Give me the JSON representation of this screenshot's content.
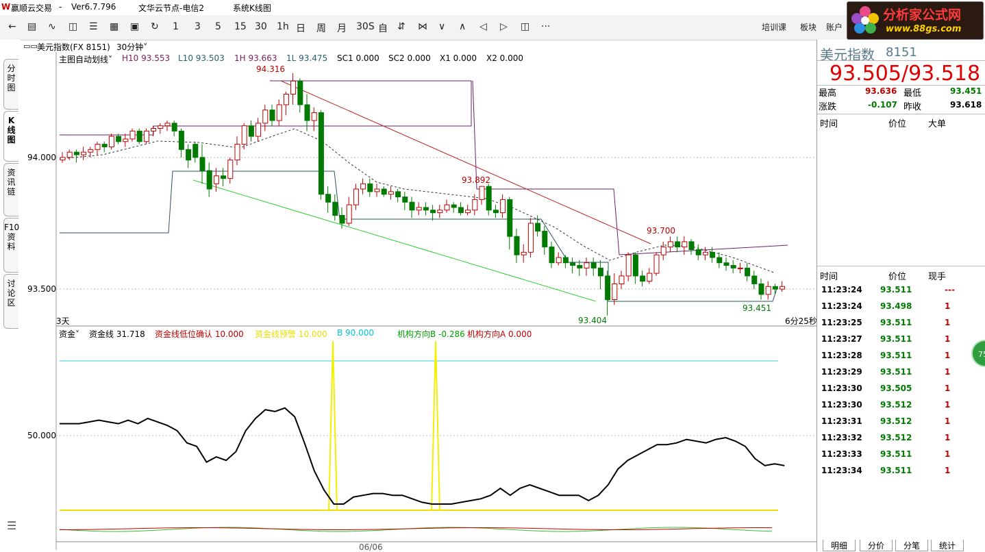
{
  "window": {
    "title": "赢顺云交易",
    "sep": "-",
    "version": "Ver6.7.796",
    "node": "文华云节点-电信2",
    "system": "系统K线图"
  },
  "logo": {
    "text": "分析家公式网",
    "url": "www.88gs.com"
  },
  "toolbar": {
    "periods": [
      "1",
      "3",
      "5",
      "15",
      "30",
      "1h",
      "日",
      "周",
      "月",
      "30S",
      "自"
    ],
    "right_items": [
      "培训课",
      "板块",
      "账户"
    ],
    "more": "···"
  },
  "sidebar": {
    "tabs": [
      "分时图",
      "K线图",
      "资讯链",
      "F10资料",
      "讨论区"
    ]
  },
  "chart": {
    "instrument": "美元指数(FX 8151)",
    "period": "30分钟",
    "indicator_name": "主图自动划线",
    "indicators": [
      {
        "text": "H10 93.553",
        "color": "#7a1f5c"
      },
      {
        "text": "L10 93.503",
        "color": "#2a6070"
      },
      {
        "text": "1H 93.663",
        "color": "#7a1f5c"
      },
      {
        "text": "1L 93.475",
        "color": "#2a6070"
      },
      {
        "text": "SC1 0.000",
        "color": "#000"
      },
      {
        "text": "SC2 0.000",
        "color": "#000"
      },
      {
        "text": "X1 0.000",
        "color": "#000"
      },
      {
        "text": "X2 0.000",
        "color": "#000"
      }
    ],
    "yticks": [
      "94.000",
      "93.500"
    ],
    "annotations": {
      "high": "94.316",
      "mid": "93.892",
      "right": "93.700",
      "low": "93.404",
      "last_low": "93.451"
    },
    "days_label": "3天",
    "countdown": "6分25秒",
    "sub_indicator": "资金",
    "sub_items": [
      {
        "text": "资金线 31.718",
        "color": "#000"
      },
      {
        "text": "资金线低位确认 10.000",
        "color": "#c00000"
      },
      {
        "text": "资金线预警 10.000",
        "color": "#e8e000"
      },
      {
        "text": "B 90.000",
        "color": "#00c8d8"
      },
      {
        "text": "机构方向B -0.286",
        "color": "#00a000"
      },
      {
        "text": "机构方向A 0.000",
        "color": "#c00000"
      }
    ],
    "sub_ytick": "50.000",
    "date_label": "06/06",
    "colors": {
      "up": "#c00000",
      "down": "#007a00"
    }
  },
  "chart_data": {
    "type": "candlestick",
    "title": "美元指数(FX 8151) 30分钟",
    "ylim": [
      93.36,
      94.4
    ],
    "candles": [
      [
        93.99,
        94.0,
        93.98,
        94.02
      ],
      [
        94.0,
        94.02,
        93.99,
        94.03
      ],
      [
        94.02,
        94.01,
        93.98,
        94.03
      ],
      [
        94.01,
        94.02,
        93.99,
        94.04
      ],
      [
        94.02,
        94.03,
        94.0,
        94.04
      ],
      [
        94.03,
        94.05,
        94.01,
        94.06
      ],
      [
        94.05,
        94.04,
        94.02,
        94.06
      ],
      [
        94.04,
        94.08,
        94.03,
        94.09
      ],
      [
        94.08,
        94.06,
        94.05,
        94.09
      ],
      [
        94.06,
        94.07,
        94.04,
        94.09
      ],
      [
        94.07,
        94.1,
        94.06,
        94.11
      ],
      [
        94.1,
        94.06,
        94.05,
        94.11
      ],
      [
        94.06,
        94.1,
        94.05,
        94.11
      ],
      [
        94.1,
        94.11,
        94.08,
        94.12
      ],
      [
        94.11,
        94.12,
        94.09,
        94.13
      ],
      [
        94.12,
        94.13,
        94.1,
        94.14
      ],
      [
        94.13,
        94.1,
        94.08,
        94.14
      ],
      [
        94.1,
        94.03,
        94.0,
        94.11
      ],
      [
        94.03,
        93.99,
        93.96,
        94.05
      ],
      [
        94.05,
        94.0,
        93.98,
        94.06
      ],
      [
        94.0,
        93.95,
        93.9,
        94.05
      ],
      [
        93.95,
        93.88,
        93.85,
        93.98
      ],
      [
        93.9,
        93.93,
        93.87,
        93.96
      ],
      [
        93.93,
        93.92,
        93.89,
        93.96
      ],
      [
        93.92,
        93.99,
        93.9,
        94.0
      ],
      [
        93.99,
        94.05,
        93.97,
        94.08
      ],
      [
        94.05,
        94.12,
        94.03,
        94.13
      ],
      [
        94.12,
        94.08,
        94.06,
        94.14
      ],
      [
        94.08,
        94.13,
        94.06,
        94.15
      ],
      [
        94.13,
        94.18,
        94.1,
        94.2
      ],
      [
        94.18,
        94.14,
        94.12,
        94.2
      ],
      [
        94.14,
        94.2,
        94.12,
        94.22
      ],
      [
        94.2,
        94.24,
        94.16,
        94.25
      ],
      [
        94.24,
        94.29,
        94.2,
        94.32
      ],
      [
        94.29,
        94.2,
        94.17,
        94.3
      ],
      [
        94.2,
        94.14,
        94.1,
        94.24
      ],
      [
        94.14,
        94.17,
        94.1,
        94.19
      ],
      [
        94.17,
        93.86,
        93.84,
        94.18
      ],
      [
        93.86,
        93.83,
        93.79,
        93.89
      ],
      [
        93.83,
        93.78,
        93.76,
        93.86
      ],
      [
        93.78,
        93.75,
        93.73,
        93.81
      ],
      [
        93.75,
        93.82,
        93.74,
        93.85
      ],
      [
        93.82,
        93.88,
        93.8,
        93.9
      ],
      [
        93.88,
        93.9,
        93.86,
        93.92
      ],
      [
        93.9,
        93.87,
        93.85,
        93.92
      ],
      [
        93.87,
        93.88,
        93.85,
        93.9
      ],
      [
        93.88,
        93.86,
        93.85,
        93.89
      ],
      [
        93.86,
        93.87,
        93.84,
        93.89
      ],
      [
        93.87,
        93.85,
        93.83,
        93.88
      ],
      [
        93.85,
        93.83,
        93.8,
        93.87
      ],
      [
        93.83,
        93.8,
        93.77,
        93.85
      ],
      [
        93.8,
        93.81,
        93.78,
        93.83
      ],
      [
        93.81,
        93.8,
        93.78,
        93.83
      ],
      [
        93.8,
        93.79,
        93.76,
        93.82
      ],
      [
        93.79,
        93.8,
        93.77,
        93.82
      ],
      [
        93.8,
        93.82,
        93.79,
        93.84
      ],
      [
        93.82,
        93.81,
        93.79,
        93.83
      ],
      [
        93.81,
        93.79,
        93.78,
        93.83
      ],
      [
        93.79,
        93.8,
        93.78,
        93.82
      ],
      [
        93.8,
        93.84,
        93.78,
        93.86
      ],
      [
        93.84,
        93.89,
        93.82,
        93.89
      ],
      [
        93.89,
        93.8,
        93.78,
        93.9
      ],
      [
        93.8,
        93.79,
        93.77,
        93.82
      ],
      [
        93.79,
        93.84,
        93.77,
        93.86
      ],
      [
        93.84,
        93.7,
        93.65,
        93.85
      ],
      [
        93.7,
        93.63,
        93.6,
        93.73
      ],
      [
        93.63,
        93.64,
        93.6,
        93.67
      ],
      [
        93.64,
        93.75,
        93.62,
        93.77
      ],
      [
        93.75,
        93.72,
        93.7,
        93.78
      ],
      [
        93.72,
        93.66,
        93.63,
        93.74
      ],
      [
        93.66,
        93.6,
        93.58,
        93.68
      ],
      [
        93.6,
        93.62,
        93.59,
        93.64
      ],
      [
        93.62,
        93.6,
        93.58,
        93.63
      ],
      [
        93.6,
        93.59,
        93.56,
        93.62
      ],
      [
        93.59,
        93.58,
        93.55,
        93.61
      ],
      [
        93.58,
        93.6,
        93.55,
        93.62
      ],
      [
        93.6,
        93.58,
        93.55,
        93.62
      ],
      [
        93.58,
        93.55,
        93.5,
        93.61
      ],
      [
        93.55,
        93.46,
        93.4,
        93.57
      ],
      [
        93.46,
        93.52,
        93.44,
        93.56
      ],
      [
        93.52,
        93.55,
        93.5,
        93.57
      ],
      [
        93.55,
        93.63,
        93.53,
        93.64
      ],
      [
        93.63,
        93.55,
        93.52,
        93.64
      ],
      [
        93.55,
        93.53,
        93.51,
        93.57
      ],
      [
        93.53,
        93.56,
        93.52,
        93.58
      ],
      [
        93.56,
        93.63,
        93.55,
        93.64
      ],
      [
        93.63,
        93.66,
        93.61,
        93.68
      ],
      [
        93.66,
        93.68,
        93.64,
        93.7
      ],
      [
        93.68,
        93.66,
        93.64,
        93.7
      ],
      [
        93.66,
        93.68,
        93.63,
        93.7
      ],
      [
        93.68,
        93.65,
        93.63,
        93.69
      ],
      [
        93.65,
        93.63,
        93.61,
        93.67
      ],
      [
        93.63,
        93.64,
        93.61,
        93.66
      ],
      [
        93.64,
        93.62,
        93.6,
        93.66
      ],
      [
        93.62,
        93.6,
        93.58,
        93.64
      ],
      [
        93.6,
        93.59,
        93.57,
        93.62
      ],
      [
        93.59,
        93.58,
        93.56,
        93.61
      ],
      [
        93.58,
        93.58,
        93.56,
        93.6
      ],
      [
        93.58,
        93.55,
        93.53,
        93.6
      ],
      [
        93.55,
        93.52,
        93.5,
        93.57
      ],
      [
        93.52,
        93.48,
        93.46,
        93.54
      ],
      [
        93.48,
        93.51,
        93.46,
        93.53
      ],
      [
        93.51,
        93.5,
        93.48,
        93.52
      ],
      [
        93.5,
        93.51,
        93.49,
        93.53
      ]
    ],
    "fund_line": [
      57,
      57,
      57,
      58,
      59,
      58,
      57,
      59,
      57,
      60,
      58,
      56,
      53,
      46,
      44,
      35,
      38,
      36,
      41,
      53,
      60,
      65,
      64,
      66,
      61,
      46,
      30,
      19,
      11,
      11,
      15,
      16,
      17,
      17,
      16,
      16,
      14,
      12,
      11,
      11,
      11,
      12,
      13,
      14,
      16,
      20,
      16,
      20,
      22,
      20,
      18,
      16,
      16,
      16,
      13,
      16,
      22,
      31,
      36,
      39,
      42,
      45,
      45,
      46,
      48,
      47,
      46,
      48,
      49,
      47,
      44,
      37,
      33,
      34,
      33
    ]
  },
  "quote": {
    "name": "美元指数",
    "code": "8151",
    "price": "93.505/93.518",
    "high_label": "最高",
    "high": "93.636",
    "low_label": "最低",
    "low": "93.451",
    "change_label": "涨跌",
    "change": "-0.107",
    "prev_label": "昨收",
    "prev": "93.618",
    "big_cols": [
      "时间",
      "价位",
      "大单"
    ],
    "tick_cols": [
      "时间",
      "价位",
      "现手"
    ],
    "ticks": [
      {
        "time": "11:23:24",
        "price": "93.511",
        "vol": "---"
      },
      {
        "time": "11:23:24",
        "price": "93.498",
        "vol": "1"
      },
      {
        "time": "11:23:25",
        "price": "93.511",
        "vol": "1"
      },
      {
        "time": "11:23:27",
        "price": "93.511",
        "vol": "1"
      },
      {
        "time": "11:23:28",
        "price": "93.511",
        "vol": "1"
      },
      {
        "time": "11:23:29",
        "price": "93.511",
        "vol": "1"
      },
      {
        "time": "11:23:30",
        "price": "93.505",
        "vol": "1"
      },
      {
        "time": "11:23:30",
        "price": "93.512",
        "vol": "1"
      },
      {
        "time": "11:23:31",
        "price": "93.512",
        "vol": "1"
      },
      {
        "time": "11:23:32",
        "price": "93.512",
        "vol": "1"
      },
      {
        "time": "11:23:33",
        "price": "93.511",
        "vol": "1"
      },
      {
        "time": "11:23:34",
        "price": "93.511",
        "vol": "1"
      }
    ],
    "bottom_tabs": [
      "明细",
      "分价",
      "分笔",
      "统计"
    ],
    "badge": "75"
  }
}
